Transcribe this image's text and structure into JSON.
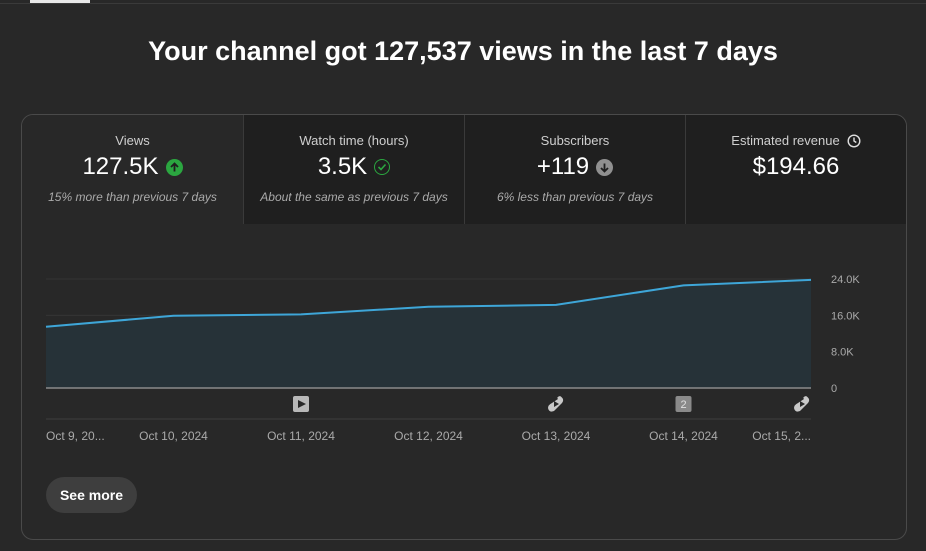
{
  "headline": "Your channel got 127,537 views in the last 7 days",
  "metrics": [
    {
      "label": "Views",
      "value": "127.5K",
      "note": "15% more than previous 7 days",
      "trend": "up",
      "icon": "arrow-up-circle-icon",
      "color": "#2ba640"
    },
    {
      "label": "Watch time (hours)",
      "value": "3.5K",
      "note": "About the same as previous 7 days",
      "trend": "same",
      "icon": "check-circle-icon",
      "color": "#2ba640"
    },
    {
      "label": "Subscribers",
      "value": "+119",
      "note": "6% less than previous 7 days",
      "trend": "down",
      "icon": "arrow-down-circle-icon",
      "color": "#909090"
    },
    {
      "label": "Estimated revenue",
      "value": "$194.66",
      "note": "",
      "icon": "clock-icon"
    }
  ],
  "chart_data": {
    "type": "area",
    "x": [
      "Oct 9, 20...",
      "Oct 10, 2024",
      "Oct 11, 2024",
      "Oct 12, 2024",
      "Oct 13, 2024",
      "Oct 14, 2024",
      "Oct 15, 2..."
    ],
    "series": [
      {
        "values": [
          13500,
          15900,
          16200,
          17900,
          18300,
          22600,
          23800
        ]
      }
    ],
    "yticks": [
      "24.0K",
      "16.0K",
      "8.0K",
      "0"
    ],
    "ylim": [
      0,
      24000
    ],
    "grid": true,
    "markers": [
      {
        "x_index": 2,
        "icon": "video-icon",
        "label": ""
      },
      {
        "x_index": 4,
        "icon": "shorts-icon",
        "label": ""
      },
      {
        "x_index": 5,
        "icon": "count-badge-icon",
        "label": "2"
      },
      {
        "x_index": 6,
        "icon": "shorts-icon",
        "label": ""
      }
    ],
    "colors": {
      "line": "#3ea6d8",
      "fill": "#263238"
    }
  },
  "see_more": "See more"
}
